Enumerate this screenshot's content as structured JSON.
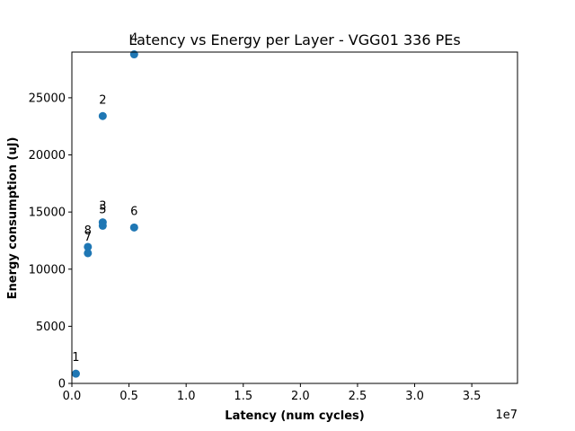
{
  "chart_data": {
    "type": "scatter",
    "title": "Latency vs Energy per Layer - VGG01 336 PEs",
    "xlabel": "Latency (num cycles)",
    "ylabel": "Energy consumption (uJ)",
    "x_offset_label": "1e7",
    "x_scale": 10000000,
    "xlim": [
      0,
      39000000
    ],
    "ylim": [
      0,
      29000
    ],
    "x_ticks": [
      0,
      5000000,
      10000000,
      15000000,
      20000000,
      25000000,
      30000000,
      35000000
    ],
    "x_tick_labels": [
      "0.0",
      "0.5",
      "1.0",
      "1.5",
      "2.0",
      "2.5",
      "3.0",
      "3.5"
    ],
    "y_ticks": [
      0,
      5000,
      10000,
      15000,
      20000,
      25000
    ],
    "y_tick_labels": [
      "0",
      "5000",
      "10000",
      "15000",
      "20000",
      "25000"
    ],
    "grid": false,
    "marker_color": "#1f77b4",
    "points": [
      {
        "label": "1",
        "x": 350000,
        "y": 850
      },
      {
        "label": "2",
        "x": 2700000,
        "y": 23400
      },
      {
        "label": "3",
        "x": 2700000,
        "y": 14100
      },
      {
        "label": "4",
        "x": 5450000,
        "y": 28800
      },
      {
        "label": "5",
        "x": 2700000,
        "y": 13800
      },
      {
        "label": "6",
        "x": 5450000,
        "y": 13650
      },
      {
        "label": "7",
        "x": 1400000,
        "y": 11400
      },
      {
        "label": "8",
        "x": 1400000,
        "y": 11950
      }
    ]
  }
}
